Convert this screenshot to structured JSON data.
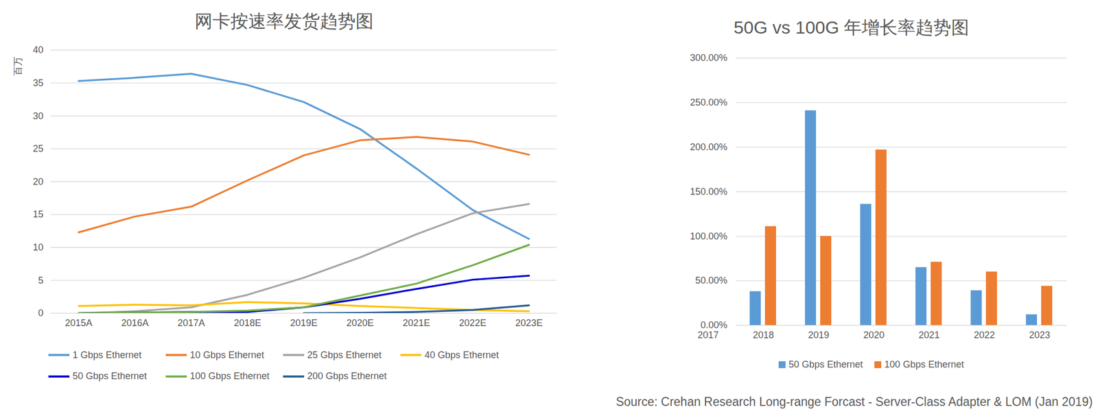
{
  "chart_data": [
    {
      "type": "line",
      "title": "网卡按速率发货趋势图",
      "ylabel": "百万",
      "categories": [
        "2015A",
        "2016A",
        "2017A",
        "2018E",
        "2019E",
        "2020E",
        "2021E",
        "2022E",
        "2023E"
      ],
      "series": [
        {
          "name": "1 Gbps Ethernet",
          "color": "#5B9BD5",
          "values": [
            35.3,
            35.8,
            36.4,
            34.7,
            32.1,
            28.0,
            22.0,
            15.7,
            11.3
          ]
        },
        {
          "name": "10 Gbps Ethernet",
          "color": "#ED7D31",
          "values": [
            12.3,
            14.7,
            16.2,
            20.2,
            24.0,
            26.3,
            26.8,
            26.1,
            24.1
          ]
        },
        {
          "name": "25 Gbps Ethernet",
          "color": "#A5A5A5",
          "values": [
            0.0,
            0.3,
            0.9,
            2.8,
            5.4,
            8.5,
            12.0,
            15.2,
            16.6
          ]
        },
        {
          "name": "40 Gbps Ethernet",
          "color": "#FFC000",
          "values": [
            1.1,
            1.3,
            1.2,
            1.7,
            1.5,
            1.1,
            0.8,
            0.5,
            0.3
          ]
        },
        {
          "name": "50 Gbps Ethernet",
          "color": "#0000CC",
          "values": [
            0.0,
            0.1,
            0.2,
            0.2,
            0.9,
            2.2,
            3.7,
            5.1,
            5.7
          ]
        },
        {
          "name": "100 Gbps Ethernet",
          "color": "#70AD47",
          "values": [
            0.0,
            0.1,
            0.2,
            0.4,
            0.9,
            2.7,
            4.5,
            7.3,
            10.4
          ]
        },
        {
          "name": "200 Gbps Ethernet",
          "color": "#255E91",
          "values": [
            null,
            null,
            null,
            null,
            0.0,
            0.05,
            0.2,
            0.5,
            1.2
          ]
        }
      ],
      "ylim": [
        0,
        40
      ],
      "yticks": [
        0,
        5,
        10,
        15,
        20,
        25,
        30,
        35,
        40
      ],
      "grid": true,
      "legend": "bottom"
    },
    {
      "type": "bar",
      "title": "50G vs 100G 年增长率趋势图",
      "categories": [
        "2017",
        "2018",
        "2019",
        "2020",
        "2021",
        "2022",
        "2023"
      ],
      "series": [
        {
          "name": "50 Gbps Ethernet",
          "color": "#5B9BD5",
          "values": [
            null,
            38,
            241,
            136,
            65,
            39,
            12
          ]
        },
        {
          "name": "100 Gbps Ethernet",
          "color": "#ED7D31",
          "values": [
            null,
            111,
            100,
            197,
            71,
            60,
            44
          ]
        }
      ],
      "ylim": [
        0,
        300
      ],
      "yticks": [
        {
          "value": 0,
          "label": "0.00%"
        },
        {
          "value": 50,
          "label": "50.00%"
        },
        {
          "value": 100,
          "label": "100.00%"
        },
        {
          "value": 150,
          "label": "150.00%"
        },
        {
          "value": 200,
          "label": "200.00%"
        },
        {
          "value": 250,
          "label": "250.00%"
        },
        {
          "value": 300,
          "label": "300.00%"
        }
      ],
      "grid": true,
      "legend": "bottom"
    }
  ],
  "source": "Source: Crehan Research Long-range Forcast - Server-Class Adapter & LOM (Jan 2019)"
}
